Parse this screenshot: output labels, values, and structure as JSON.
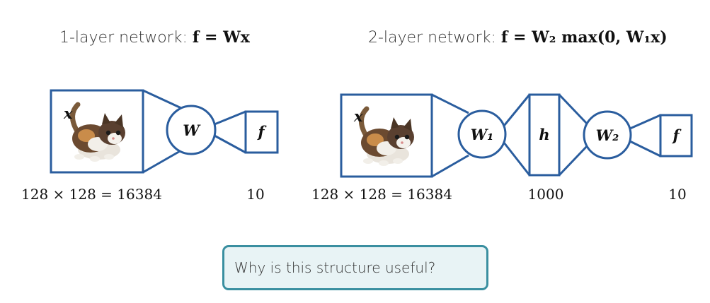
{
  "colors": {
    "stroke": "#2a5d9e",
    "question_border": "#3a8fa0",
    "question_bg": "#e8f3f5"
  },
  "network1": {
    "title_prefix": "1-layer network: ",
    "equation": "f = Wx",
    "input_label": "x",
    "weight_label": "W",
    "output_label": "f",
    "input_size": "128 × 128 = 16384",
    "output_size": "10",
    "input_image": "kitten-image"
  },
  "network2": {
    "title_prefix": "2-layer network: ",
    "equation": "f = W₂ max(0, W₁x)",
    "input_label": "x",
    "weight1_label": "W₁",
    "hidden_label": "h",
    "weight2_label": "W₂",
    "output_label": "f",
    "input_size": "128 × 128 = 16384",
    "hidden_size": "1000",
    "output_size": "10",
    "input_image": "kitten-image"
  },
  "question": "Why is this structure useful?"
}
